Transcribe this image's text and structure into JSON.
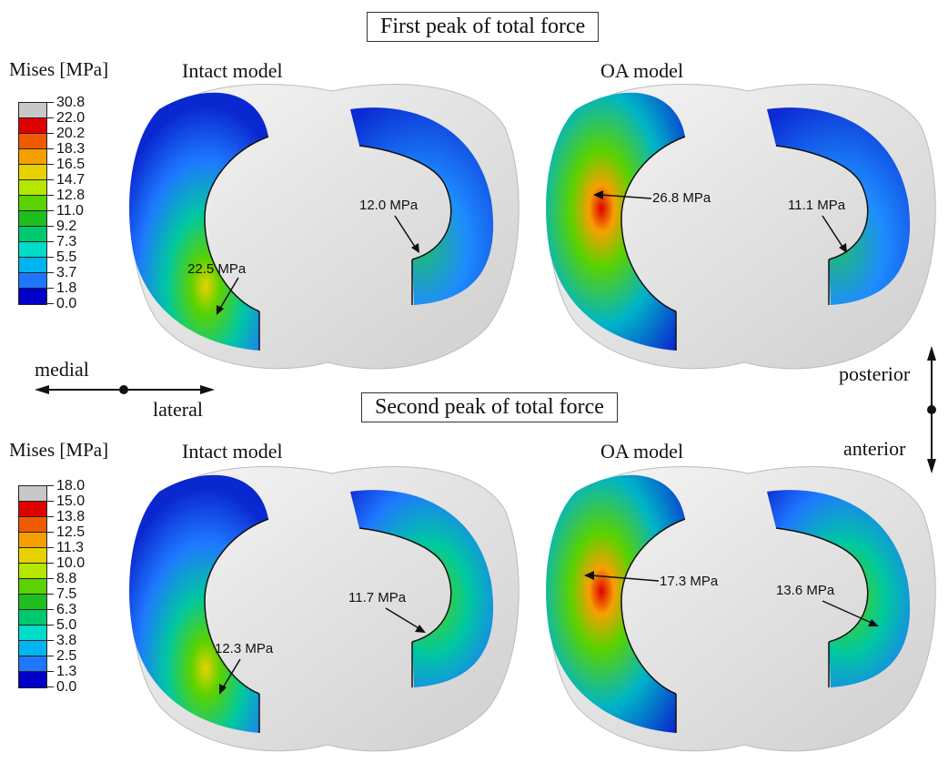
{
  "top": {
    "title": "First peak of total force",
    "legend_title": "Mises [MPa]",
    "legend_values": [
      "30.8",
      "22.0",
      "20.2",
      "18.3",
      "16.5",
      "14.7",
      "12.8",
      "11.0",
      "9.2",
      "7.3",
      "5.5",
      "3.7",
      "1.8",
      "0.0"
    ],
    "panel_intact_label": "Intact model",
    "panel_oa_label": "OA model",
    "intact_medial_peak": "22.5 MPa",
    "intact_lateral_peak": "12.0 MPa",
    "oa_medial_peak": "26.8 MPa",
    "oa_lateral_peak": "11.1 MPa"
  },
  "bottom": {
    "title": "Second peak of total force",
    "legend_title": "Mises [MPa]",
    "legend_values": [
      "18.0",
      "15.0",
      "13.8",
      "12.5",
      "11.3",
      "10.0",
      "8.8",
      "7.5",
      "6.3",
      "5.0",
      "3.8",
      "2.5",
      "1.3",
      "0.0"
    ],
    "panel_intact_label": "Intact model",
    "panel_oa_label": "OA model",
    "intact_medial_peak": "12.3 MPa",
    "intact_lateral_peak": "11.7 MPa",
    "oa_medial_peak": "17.3 MPa",
    "oa_lateral_peak": "13.6 MPa"
  },
  "orientation": {
    "medial": "medial",
    "lateral": "lateral",
    "posterior": "posterior",
    "anterior": "anterior"
  },
  "colors": {
    "legend_scale": [
      "#c8c8c8",
      "#e00000",
      "#f05a00",
      "#f5a000",
      "#e6d200",
      "#b4e600",
      "#5ad200",
      "#1ebe1e",
      "#00c86e",
      "#00dcc8",
      "#00b4f0",
      "#1e78ff",
      "#0a32dc",
      "#0000c8"
    ],
    "bone": "#e6e6e6",
    "meniscus_low": "#1432d2"
  }
}
